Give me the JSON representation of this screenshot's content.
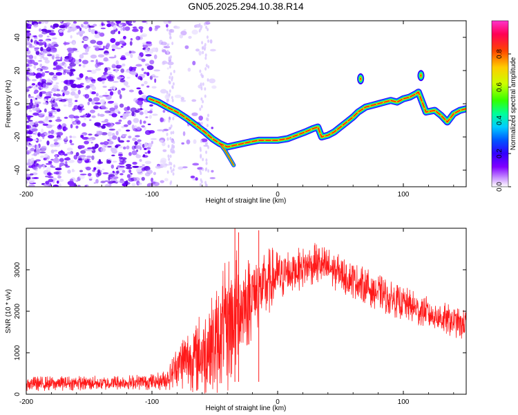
{
  "chart_data": [
    {
      "type": "heatmap",
      "title": "GN05.2025.294.10.38.R14",
      "xlabel": "Height of straight line (km)",
      "ylabel": "Frequency (Hz)",
      "xlim": [
        -200,
        150
      ],
      "ylim": [
        -50,
        50
      ],
      "xticks": [
        "-200",
        "-100",
        "0",
        "100"
      ],
      "xtick_values": [
        -200,
        -100,
        0,
        100
      ],
      "yticks": [
        "-40",
        "-20",
        "0",
        "20",
        "40"
      ],
      "ytick_values": [
        -40,
        -20,
        0,
        20,
        40
      ],
      "colorbar": {
        "label": "Normalized spectral amplitude",
        "range": [
          0,
          1
        ],
        "ticks": [
          "0.0",
          "0.2",
          "0.4",
          "0.6",
          "0.8"
        ],
        "tick_values": [
          0.0,
          0.2,
          0.4,
          0.6,
          0.8
        ]
      },
      "track": {
        "x": [
          -102,
          -95,
          -88,
          -80,
          -72,
          -65,
          -58,
          -52,
          -46,
          -40,
          -34,
          -28,
          -22,
          -15,
          -8,
          0,
          8,
          15,
          22,
          28,
          32,
          35,
          40,
          45,
          50,
          55,
          60,
          64,
          70,
          75,
          80,
          85,
          90,
          95,
          100,
          105,
          110,
          112,
          118,
          125,
          130,
          135,
          140,
          145,
          150
        ],
        "y": [
          3,
          1,
          -2,
          -5,
          -9,
          -13,
          -17,
          -21,
          -24,
          -26,
          -25,
          -24,
          -23,
          -22,
          -22,
          -22,
          -21,
          -19,
          -17,
          -15,
          -14,
          -20,
          -19,
          -17,
          -14,
          -11,
          -8,
          -5,
          -2,
          -1,
          0,
          1,
          2,
          1,
          3,
          4,
          6,
          7,
          -5,
          -4,
          -7,
          -11,
          -6,
          -4,
          -3
        ]
      },
      "branch": {
        "x": [
          -46,
          -42,
          -38,
          -35
        ],
        "y": [
          -24,
          -28,
          -33,
          -37
        ]
      },
      "islands": [
        {
          "x": 66,
          "y": 15
        },
        {
          "x": 114,
          "y": 17
        }
      ]
    },
    {
      "type": "line",
      "xlabel": "Height of straight line (km)",
      "ylabel": "SNR (10 * v/v)",
      "xlim": [
        -200,
        150
      ],
      "ylim": [
        0,
        4000
      ],
      "xticks": [
        "-200",
        "-100",
        "0",
        "100"
      ],
      "xtick_values": [
        -200,
        -100,
        0,
        100
      ],
      "yticks": [
        "0",
        "1000",
        "2000",
        "3000"
      ],
      "ytick_values": [
        0,
        1000,
        2000,
        3000
      ],
      "series": [
        {
          "name": "SNR",
          "color": "#ff0000",
          "x": [
            -200,
            -180,
            -160,
            -140,
            -120,
            -100,
            -90,
            -85,
            -80,
            -75,
            -70,
            -65,
            -60,
            -55,
            -50,
            -45,
            -40,
            -35,
            -30,
            -25,
            -20,
            -15,
            -10,
            -5,
            0,
            10,
            20,
            30,
            35,
            40,
            50,
            60,
            70,
            80,
            90,
            100,
            110,
            120,
            130,
            140,
            150
          ],
          "values": [
            250,
            260,
            270,
            270,
            280,
            300,
            330,
            450,
            700,
            800,
            850,
            900,
            1000,
            1100,
            1200,
            1400,
            1650,
            1900,
            2050,
            2200,
            2400,
            2500,
            2650,
            2750,
            2850,
            2950,
            3050,
            3150,
            3100,
            3050,
            2900,
            2750,
            2600,
            2450,
            2300,
            2200,
            2050,
            1950,
            1850,
            1750,
            1650
          ],
          "noise_amplitude": [
            180,
            180,
            180,
            180,
            190,
            200,
            240,
            350,
            550,
            700,
            800,
            900,
            1100,
            1200,
            1300,
            1500,
            1700,
            1700,
            1400,
            1200,
            1100,
            900,
            900,
            800,
            700,
            600,
            500,
            500,
            500,
            500,
            450,
            450,
            450,
            450,
            420,
            420,
            420,
            400,
            400,
            380,
            380
          ]
        }
      ],
      "spikes": [
        {
          "x": -34,
          "value": 4000
        },
        {
          "x": -31,
          "value": 3900
        },
        {
          "x": -15,
          "value": 3950
        }
      ]
    }
  ]
}
